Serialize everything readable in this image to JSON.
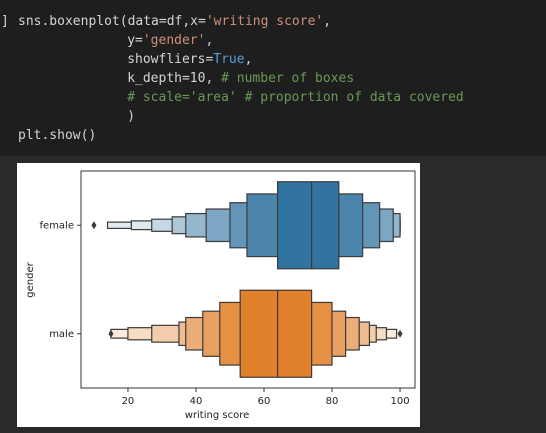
{
  "code": {
    "prompt": "]",
    "lines": [
      {
        "indent": 0,
        "segments": [
          {
            "text": "sns.boxenplot(data=df,x=",
            "color": "#d4d4d4"
          },
          {
            "text": "'writing score'",
            "color": "#ce9178"
          },
          {
            "text": ",",
            "color": "#d4d4d4"
          }
        ]
      },
      {
        "indent": 14,
        "segments": [
          {
            "text": "y=",
            "color": "#d4d4d4"
          },
          {
            "text": "'gender'",
            "color": "#ce9178"
          },
          {
            "text": ",",
            "color": "#d4d4d4"
          }
        ]
      },
      {
        "indent": 14,
        "segments": [
          {
            "text": "showfliers=",
            "color": "#d4d4d4"
          },
          {
            "text": "True",
            "color": "#569cd6"
          },
          {
            "text": ",",
            "color": "#d4d4d4"
          }
        ]
      },
      {
        "indent": 14,
        "segments": [
          {
            "text": "k_depth=10, ",
            "color": "#d4d4d4"
          },
          {
            "text": "# number of boxes",
            "color": "#6a9955"
          }
        ]
      },
      {
        "indent": 14,
        "segments": [
          {
            "text": "# scale='area' # proportion of data covered",
            "color": "#6a9955"
          }
        ]
      },
      {
        "indent": 14,
        "segments": [
          {
            "text": ")",
            "color": "#d4d4d4"
          }
        ]
      },
      {
        "indent": 0,
        "segments": [
          {
            "text": "plt.show()",
            "color": "#d4d4d4"
          }
        ]
      }
    ]
  },
  "chart_data": {
    "type": "boxen",
    "xlabel": "writing score",
    "ylabel": "gender",
    "categories": [
      "female",
      "male"
    ],
    "boxes": [
      {
        "color": "#3274a1",
        "median": 74,
        "low": [
          64,
          55,
          50,
          43,
          37,
          33,
          27,
          21,
          14
        ],
        "high": [
          82,
          89,
          94,
          98,
          100,
          100,
          100,
          100,
          100
        ],
        "fliers": [
          10
        ]
      },
      {
        "color": "#e1812c",
        "median": 64,
        "low": [
          53,
          47,
          42,
          37,
          35,
          27,
          20,
          15
        ],
        "high": [
          74,
          80,
          84,
          88,
          91,
          93,
          96,
          99
        ],
        "fliers": [
          15,
          100
        ]
      }
    ],
    "xlim": [
      6.2,
      104.4
    ],
    "xticks": [
      20,
      40,
      60,
      80,
      100
    ]
  }
}
